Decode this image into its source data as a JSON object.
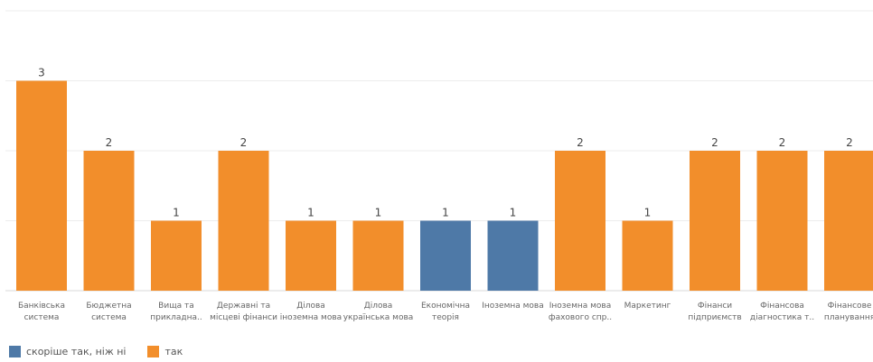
{
  "chart_data": {
    "type": "bar",
    "categories": [
      [
        "Банківська",
        "система"
      ],
      [
        "Бюджетна",
        "система"
      ],
      [
        "Вища та",
        "прикладна.."
      ],
      [
        "Державні та",
        "місцеві фінанси"
      ],
      [
        "Ділова",
        "іноземна мова"
      ],
      [
        "Ділова",
        "українська мова"
      ],
      [
        "Економічна",
        "теорія"
      ],
      [
        "Іноземна мова"
      ],
      [
        "Іноземна мова",
        "фахового спр.."
      ],
      [
        "Маркетинг"
      ],
      [
        "Фінанси",
        "підприємств"
      ],
      [
        "Фінансова",
        "діагностика т.."
      ],
      [
        "Фінансове",
        "планування"
      ]
    ],
    "values": [
      3,
      2,
      1,
      2,
      1,
      1,
      1,
      1,
      2,
      1,
      2,
      2,
      2
    ],
    "bar_series": [
      "так",
      "так",
      "так",
      "так",
      "так",
      "так",
      "скоріше так, ніж ні",
      "скоріше так, ніж ні",
      "так",
      "так",
      "так",
      "так",
      "так"
    ],
    "series": [
      {
        "name": "скоріше так, ніж ні",
        "color": "#4e79a7"
      },
      {
        "name": "так",
        "color": "#f28e2b"
      }
    ],
    "ylim": [
      0,
      4
    ],
    "grid": true,
    "legend": "bottom-left",
    "data_labels": true
  }
}
